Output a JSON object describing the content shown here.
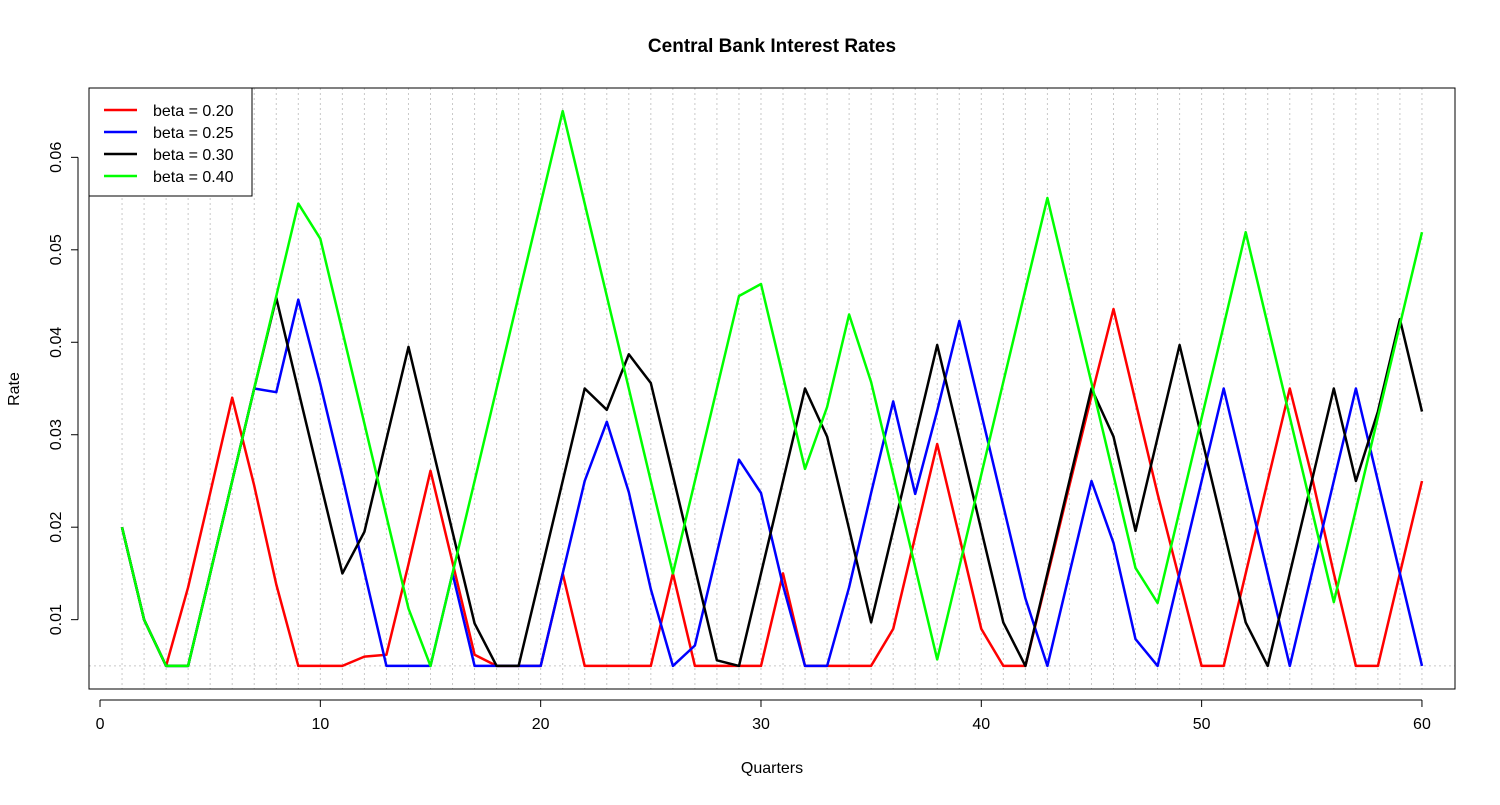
{
  "chart_data": {
    "type": "line",
    "title": "Central Bank Interest Rates",
    "xlabel": "Quarters",
    "ylabel": "Rate",
    "xlim": [
      -0.5,
      61.5
    ],
    "ylim": [
      0.0025,
      0.0675
    ],
    "xticks": [
      0,
      10,
      20,
      30,
      40,
      50,
      60
    ],
    "yticks": [
      0.01,
      0.02,
      0.03,
      0.04,
      0.05,
      0.06
    ],
    "xtick_labels": [
      "0",
      "10",
      "20",
      "30",
      "40",
      "50",
      "60"
    ],
    "ytick_labels": [
      "0.01",
      "0.02",
      "0.03",
      "0.04",
      "0.05",
      "0.06"
    ],
    "grid": "vertical dotted lines at each quarter",
    "reference_line": 0.005,
    "legend_position": "top-left",
    "x": [
      1,
      2,
      3,
      4,
      5,
      6,
      7,
      8,
      9,
      10,
      11,
      12,
      13,
      14,
      15,
      16,
      17,
      18,
      19,
      20,
      21,
      22,
      23,
      24,
      25,
      26,
      27,
      28,
      29,
      30,
      31,
      32,
      33,
      34,
      35,
      36,
      37,
      38,
      39,
      40,
      41,
      42,
      43,
      44,
      45,
      46,
      47,
      48,
      49,
      50,
      51,
      52,
      53,
      54,
      55,
      56,
      57,
      58,
      59,
      60
    ],
    "series": [
      {
        "name": "beta = 0.20",
        "color": "#ff0000",
        "values": [
          0.02,
          0.01,
          0.005,
          0.0135,
          0.0237,
          0.034,
          0.0245,
          0.0138,
          0.005,
          0.005,
          0.005,
          0.006,
          0.0062,
          0.016,
          0.0261,
          0.0162,
          0.0062,
          0.005,
          0.005,
          0.005,
          0.015,
          0.005,
          0.005,
          0.005,
          0.005,
          0.015,
          0.005,
          0.005,
          0.005,
          0.005,
          0.015,
          0.005,
          0.005,
          0.005,
          0.005,
          0.009,
          0.019,
          0.029,
          0.019,
          0.009,
          0.005,
          0.005,
          0.0147,
          0.0245,
          0.0342,
          0.0436,
          0.0336,
          0.0236,
          0.0143,
          0.005,
          0.005,
          0.015,
          0.025,
          0.035,
          0.0255,
          0.015,
          0.005,
          0.005,
          0.015,
          0.025
        ]
      },
      {
        "name": "beta = 0.25",
        "color": "#0000ff",
        "values": [
          0.02,
          0.01,
          0.005,
          0.005,
          0.015,
          0.025,
          0.035,
          0.0346,
          0.0446,
          0.0355,
          0.0255,
          0.0152,
          0.005,
          0.005,
          0.005,
          0.015,
          0.005,
          0.005,
          0.005,
          0.005,
          0.015,
          0.025,
          0.0314,
          0.0238,
          0.0133,
          0.005,
          0.0072,
          0.0172,
          0.0273,
          0.0237,
          0.0137,
          0.005,
          0.005,
          0.0135,
          0.0237,
          0.0336,
          0.0236,
          0.0326,
          0.0423,
          0.0323,
          0.0223,
          0.0123,
          0.005,
          0.015,
          0.025,
          0.0183,
          0.0079,
          0.005,
          0.015,
          0.025,
          0.035,
          0.025,
          0.015,
          0.005,
          0.015,
          0.025,
          0.035,
          0.025,
          0.015,
          0.005
        ]
      },
      {
        "name": "beta = 0.30",
        "color": "#000000",
        "values": [
          0.02,
          0.01,
          0.005,
          0.005,
          0.015,
          0.025,
          0.035,
          0.0448,
          0.0348,
          0.0249,
          0.015,
          0.0195,
          0.0295,
          0.0395,
          0.0295,
          0.0195,
          0.0096,
          0.005,
          0.005,
          0.015,
          0.025,
          0.035,
          0.0327,
          0.0387,
          0.0356,
          0.0256,
          0.0156,
          0.0056,
          0.005,
          0.015,
          0.025,
          0.035,
          0.0298,
          0.0198,
          0.0097,
          0.0197,
          0.0297,
          0.0397,
          0.0297,
          0.0197,
          0.0097,
          0.005,
          0.015,
          0.025,
          0.035,
          0.0298,
          0.0196,
          0.0297,
          0.0397,
          0.0297,
          0.0197,
          0.0097,
          0.005,
          0.015,
          0.025,
          0.035,
          0.025,
          0.0325,
          0.0425,
          0.0325
        ]
      },
      {
        "name": "beta = 0.40",
        "color": "#00ff00",
        "values": [
          0.02,
          0.01,
          0.005,
          0.005,
          0.015,
          0.025,
          0.035,
          0.045,
          0.055,
          0.0512,
          0.0412,
          0.0312,
          0.0212,
          0.0112,
          0.005,
          0.015,
          0.025,
          0.035,
          0.045,
          0.055,
          0.065,
          0.055,
          0.045,
          0.035,
          0.025,
          0.015,
          0.025,
          0.035,
          0.045,
          0.0463,
          0.0363,
          0.0263,
          0.033,
          0.043,
          0.0357,
          0.0257,
          0.0157,
          0.0057,
          0.0157,
          0.0257,
          0.0357,
          0.0457,
          0.0556,
          0.0456,
          0.0356,
          0.0256,
          0.0156,
          0.0118,
          0.0218,
          0.0318,
          0.0418,
          0.0519,
          0.0419,
          0.0319,
          0.0219,
          0.0119,
          0.0219,
          0.0319,
          0.0419,
          0.0519
        ]
      }
    ]
  }
}
